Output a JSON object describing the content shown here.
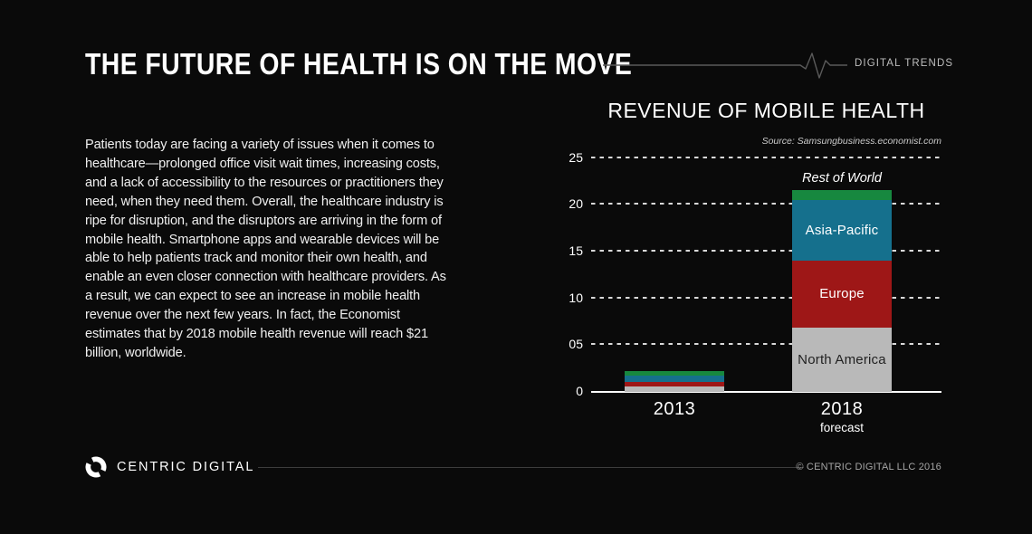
{
  "header": {
    "title": "THE FUTURE OF HEALTH IS ON THE MOVE",
    "brand_tag": "DIGITAL TRENDS"
  },
  "intro": {
    "paragraph": "Patients today are facing a variety of issues when it comes to healthcare—prolonged office visit wait times, increasing costs, and a lack of accessibility to the resources or practitioners they need, when they need them. Overall, the healthcare industry is ripe for disruption, and the disruptors are arriving in the form of mobile health. Smartphone apps and wearable devices will be able to help patients track and monitor their own health, and enable an even closer connection with healthcare providers. As a result, we can expect to see an increase in mobile health revenue over the next few years. In fact, the Economist estimates that by 2018 mobile health revenue will reach $21 billion, worldwide."
  },
  "chart": {
    "title": "REVENUE OF MOBILE HEALTH",
    "source": "Source: Samsungbusiness.economist.com"
  },
  "chart_data": {
    "type": "bar",
    "stacked": true,
    "title": "REVENUE OF MOBILE HEALTH",
    "categories": [
      "2013",
      "2018"
    ],
    "category_sublabels": [
      "",
      "forecast"
    ],
    "series": [
      {
        "name": "North America",
        "values": [
          0.6,
          6.9
        ],
        "color": "#b9b9b9"
      },
      {
        "name": "Europe",
        "values": [
          0.45,
          7.1
        ],
        "color": "#9e1717"
      },
      {
        "name": "Asia-Pacific",
        "values": [
          0.7,
          6.5
        ],
        "color": "#15708d"
      },
      {
        "name": "Rest of World",
        "values": [
          0.45,
          1.1
        ],
        "color": "#17883f"
      }
    ],
    "totals": {
      "2013": 2.2,
      "2018": 21.6
    },
    "ylim": [
      0,
      26
    ],
    "y_ticks": [
      {
        "label": "0",
        "value": 0
      },
      {
        "label": "05",
        "value": 5
      },
      {
        "label": "10",
        "value": 10
      },
      {
        "label": "15",
        "value": 15
      },
      {
        "label": "20",
        "value": 20
      },
      {
        "label": "25",
        "value": 25
      }
    ],
    "grid": "dashed horizontal",
    "legend": "labels inside segments; Rest of World annotated above bar",
    "annotation": "Rest of World"
  },
  "footer": {
    "brand": "CENTRIC DIGITAL",
    "copyright": "© CENTRIC DIGITAL LLC 2016"
  }
}
